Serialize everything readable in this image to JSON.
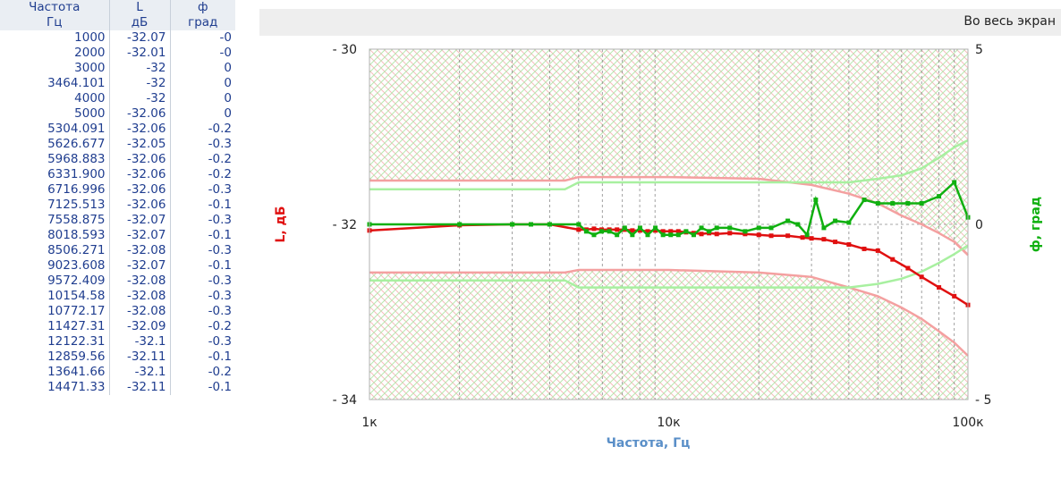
{
  "table": {
    "headers": [
      {
        "line1": "Частота",
        "line2": "Гц"
      },
      {
        "line1": "L",
        "line2": "дБ"
      },
      {
        "line1": "ф",
        "line2": "град"
      }
    ],
    "rows": [
      [
        "1000",
        "-32.07",
        "-0"
      ],
      [
        "2000",
        "-32.01",
        "-0"
      ],
      [
        "3000",
        "-32",
        "0"
      ],
      [
        "3464.101",
        "-32",
        "0"
      ],
      [
        "4000",
        "-32",
        "0"
      ],
      [
        "5000",
        "-32.06",
        "0"
      ],
      [
        "5304.091",
        "-32.06",
        "-0.2"
      ],
      [
        "5626.677",
        "-32.05",
        "-0.3"
      ],
      [
        "5968.883",
        "-32.06",
        "-0.2"
      ],
      [
        "6331.900",
        "-32.06",
        "-0.2"
      ],
      [
        "6716.996",
        "-32.06",
        "-0.3"
      ],
      [
        "7125.513",
        "-32.06",
        "-0.1"
      ],
      [
        "7558.875",
        "-32.07",
        "-0.3"
      ],
      [
        "8018.593",
        "-32.07",
        "-0.1"
      ],
      [
        "8506.271",
        "-32.08",
        "-0.3"
      ],
      [
        "9023.608",
        "-32.07",
        "-0.1"
      ],
      [
        "9572.409",
        "-32.08",
        "-0.3"
      ],
      [
        "10154.58",
        "-32.08",
        "-0.3"
      ],
      [
        "10772.17",
        "-32.08",
        "-0.3"
      ],
      [
        "11427.31",
        "-32.09",
        "-0.2"
      ],
      [
        "12122.31",
        "-32.1",
        "-0.3"
      ],
      [
        "12859.56",
        "-32.11",
        "-0.1"
      ],
      [
        "13641.66",
        "-32.1",
        "-0.2"
      ],
      [
        "14471.33",
        "-32.11",
        "-0.1"
      ]
    ]
  },
  "toolbar": {
    "fullscreen_label": "Во весь экран"
  },
  "colors": {
    "level": "#e01010",
    "phase": "#10b010",
    "level_limit": "#f4a0a0",
    "phase_limit": "#a8f0a0",
    "axis_label": "#5a8fc8"
  },
  "chart_data": {
    "type": "line",
    "x_scale": "log",
    "xlim": [
      1000,
      100000
    ],
    "ylim_left": [
      -34,
      -30
    ],
    "ylim_right": [
      -5,
      5
    ],
    "xticks": [
      {
        "value": 1000,
        "label": "1к"
      },
      {
        "value": 10000,
        "label": "10к"
      },
      {
        "value": 100000,
        "label": "100к"
      }
    ],
    "yticks_left": [
      {
        "value": -30,
        "label": "- 30"
      },
      {
        "value": -32,
        "label": "- 32"
      },
      {
        "value": -34,
        "label": "- 34"
      }
    ],
    "yticks_right": [
      {
        "value": 5,
        "label": "5"
      },
      {
        "value": 0,
        "label": "0"
      },
      {
        "value": -5,
        "label": "- 5"
      }
    ],
    "xlabel": "Частота, Гц",
    "ylabel_left": "L, дБ",
    "ylabel_right": "ф, град",
    "series": [
      {
        "axis": "left",
        "role": "level",
        "x": [
          1000,
          2000,
          3000,
          3464,
          4000,
          5000,
          5304,
          5627,
          5969,
          6332,
          6717,
          7126,
          7559,
          8019,
          8506,
          9024,
          9572,
          10155,
          10772,
          11427,
          12122,
          12860,
          13642,
          14471,
          16000,
          18000,
          20000,
          22000,
          25000,
          28000,
          30000,
          33000,
          36000,
          40000,
          45000,
          50000,
          56000,
          63000,
          70000,
          80000,
          90000,
          100000
        ],
        "y": [
          -32.07,
          -32.01,
          -32,
          -32,
          -32,
          -32.06,
          -32.06,
          -32.05,
          -32.06,
          -32.06,
          -32.06,
          -32.06,
          -32.07,
          -32.07,
          -32.08,
          -32.07,
          -32.08,
          -32.08,
          -32.08,
          -32.09,
          -32.1,
          -32.11,
          -32.1,
          -32.11,
          -32.1,
          -32.11,
          -32.12,
          -32.13,
          -32.13,
          -32.15,
          -32.16,
          -32.17,
          -32.2,
          -32.23,
          -32.28,
          -32.3,
          -32.4,
          -32.5,
          -32.6,
          -32.72,
          -32.82,
          -32.92
        ]
      },
      {
        "axis": "right",
        "role": "phase",
        "x": [
          1000,
          2000,
          3000,
          3464,
          4000,
          5000,
          5304,
          5627,
          5969,
          6332,
          6717,
          7126,
          7559,
          8019,
          8506,
          9024,
          9572,
          10155,
          10772,
          11427,
          12122,
          12860,
          13642,
          14471,
          16000,
          18000,
          20000,
          22000,
          25000,
          27000,
          29000,
          31000,
          33000,
          36000,
          40000,
          45000,
          50000,
          56000,
          63000,
          70000,
          80000,
          90000,
          100000
        ],
        "y": [
          0,
          0,
          0,
          0,
          0,
          0,
          -0.2,
          -0.3,
          -0.2,
          -0.2,
          -0.3,
          -0.1,
          -0.3,
          -0.1,
          -0.3,
          -0.1,
          -0.3,
          -0.3,
          -0.3,
          -0.2,
          -0.3,
          -0.1,
          -0.2,
          -0.1,
          -0.1,
          -0.2,
          -0.1,
          -0.1,
          0.1,
          0,
          -0.3,
          0.7,
          -0.1,
          0.1,
          0.05,
          0.7,
          0.6,
          0.6,
          0.6,
          0.6,
          0.8,
          1.2,
          0.2
        ]
      },
      {
        "axis": "left",
        "role": "level-limit-upper",
        "x": [
          1000,
          4500,
          5000,
          10000,
          20000,
          30000,
          40000,
          50000,
          60000,
          70000,
          80000,
          90000,
          100000
        ],
        "y": [
          -31.5,
          -31.5,
          -31.46,
          -31.46,
          -31.48,
          -31.55,
          -31.65,
          -31.76,
          -31.9,
          -32.0,
          -32.1,
          -32.2,
          -32.35
        ]
      },
      {
        "axis": "left",
        "role": "level-limit-lower",
        "x": [
          1000,
          4500,
          5000,
          10000,
          20000,
          30000,
          40000,
          50000,
          60000,
          70000,
          80000,
          90000,
          100000
        ],
        "y": [
          -32.55,
          -32.55,
          -32.52,
          -32.52,
          -32.55,
          -32.6,
          -32.72,
          -32.82,
          -32.95,
          -33.08,
          -33.22,
          -33.35,
          -33.5
        ]
      },
      {
        "axis": "right",
        "role": "phase-limit-upper",
        "x": [
          1000,
          4500,
          5000,
          10000,
          20000,
          30000,
          40000,
          50000,
          60000,
          70000,
          80000,
          90000,
          100000
        ],
        "y": [
          1.0,
          1.0,
          1.2,
          1.2,
          1.2,
          1.2,
          1.2,
          1.3,
          1.4,
          1.6,
          1.9,
          2.2,
          2.4
        ]
      },
      {
        "axis": "right",
        "role": "phase-limit-lower",
        "x": [
          1000,
          4500,
          5000,
          10000,
          20000,
          30000,
          40000,
          50000,
          60000,
          70000,
          80000,
          90000,
          100000
        ],
        "y": [
          -1.6,
          -1.6,
          -1.8,
          -1.8,
          -1.8,
          -1.8,
          -1.8,
          -1.7,
          -1.55,
          -1.35,
          -1.1,
          -0.85,
          -0.6
        ]
      }
    ]
  }
}
